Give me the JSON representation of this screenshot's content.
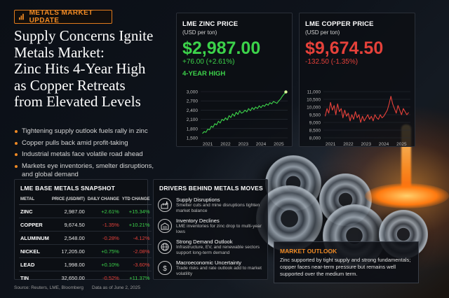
{
  "badge": {
    "label": "METALS MARKET UPDATE",
    "icon": "bar-chart-icon",
    "accent": "#f08a24"
  },
  "headline": [
    "Supply Concerns Ignite",
    "Metals Market:",
    "Zinc Hits 4-Year High",
    "as Copper Retreats",
    "from Elevated Levels"
  ],
  "bullets": [
    "Tightening supply outlook fuels rally in zinc",
    "Copper pulls back amid profit-taking",
    "Industrial metals face volatile road ahead",
    "Markets eye inventories, smelter disruptions, and global demand"
  ],
  "zinc_card": {
    "title": "LME ZINC PRICE",
    "unit": "(USD per ton)",
    "price": "$2,987.00",
    "change": "+76.00 (+2.61%)",
    "subtitle": "4-YEAR HIGH",
    "color": "#3cd24a"
  },
  "copper_card": {
    "title": "LME COPPER PRICE",
    "unit": "(USD per ton)",
    "price": "$9,674.50",
    "change": "-132.50 (-1.35%)",
    "color": "#e5413a"
  },
  "chart_data": [
    {
      "type": "line",
      "yticks": [
        "3,000",
        "2,700",
        "2,400",
        "2,100",
        "1,800",
        "1,500"
      ],
      "xticks": [
        "2021",
        "2022",
        "2023",
        "2024",
        "2025"
      ],
      "ylim": [
        1500,
        3000
      ],
      "xlim": [
        2020.6,
        2025.5
      ],
      "series": [
        {
          "color": "#3cd24a",
          "x": [
            2020.7,
            2020.8,
            2020.9,
            2021.0,
            2021.1,
            2021.2,
            2021.3,
            2021.4,
            2021.5,
            2021.6,
            2021.7,
            2021.8,
            2021.9,
            2022.0,
            2022.1,
            2022.2,
            2022.3,
            2022.4,
            2022.5,
            2022.6,
            2022.7,
            2022.8,
            2022.9,
            2023.0,
            2023.1,
            2023.2,
            2023.3,
            2023.4,
            2023.5,
            2023.6,
            2023.7,
            2023.8,
            2023.9,
            2024.0,
            2024.1,
            2024.2,
            2024.3,
            2024.4,
            2024.5,
            2024.6,
            2024.7,
            2024.8,
            2024.9,
            2025.0,
            2025.1,
            2025.2,
            2025.3,
            2025.4
          ],
          "y": [
            1640,
            1700,
            1680,
            1780,
            1760,
            1880,
            1840,
            1960,
            1920,
            2040,
            1980,
            2100,
            2060,
            2150,
            2080,
            2220,
            2160,
            2280,
            2200,
            2330,
            2260,
            2380,
            2300,
            2330,
            2400,
            2340,
            2450,
            2380,
            2480,
            2420,
            2500,
            2450,
            2540,
            2480,
            2560,
            2520,
            2600,
            2560,
            2640,
            2600,
            2680,
            2650,
            2620,
            2700,
            2760,
            2850,
            2920,
            2990
          ],
          "endpoint": true
        }
      ]
    },
    {
      "type": "line",
      "yticks": [
        "11,000",
        "10,500",
        "10,000",
        "9,500",
        "9,000",
        "8,500",
        "8,000"
      ],
      "xticks": [
        "2021",
        "2022",
        "2023",
        "2024",
        "2025"
      ],
      "ylim": [
        8000,
        11000
      ],
      "xlim": [
        2020.6,
        2025.5
      ],
      "series": [
        {
          "color": "#e5413a",
          "x": [
            2020.7,
            2020.8,
            2020.9,
            2021.0,
            2021.1,
            2021.2,
            2021.3,
            2021.4,
            2021.5,
            2021.6,
            2021.7,
            2021.8,
            2021.9,
            2022.0,
            2022.1,
            2022.2,
            2022.3,
            2022.4,
            2022.5,
            2022.6,
            2022.7,
            2022.8,
            2022.9,
            2023.0,
            2023.1,
            2023.2,
            2023.3,
            2023.4,
            2023.5,
            2023.6,
            2023.7,
            2023.8,
            2023.9,
            2024.0,
            2024.1,
            2024.2,
            2024.3,
            2024.4,
            2024.5,
            2024.6,
            2024.7,
            2024.8,
            2024.9,
            2025.0,
            2025.1,
            2025.2,
            2025.3,
            2025.4
          ],
          "y": [
            9400,
            9900,
            9600,
            10300,
            9800,
            10100,
            9500,
            10200,
            9700,
            9900,
            9300,
            9800,
            9400,
            9600,
            9100,
            9500,
            9200,
            9700,
            9300,
            9500,
            9000,
            9400,
            9100,
            9300,
            9500,
            9200,
            9400,
            9100,
            9500,
            9300,
            9200,
            9500,
            9300,
            9400,
            9600,
            9800,
            10200,
            10700,
            10200,
            9900,
            9600,
            10100,
            9800,
            9500,
            9900,
            9700,
            9500,
            9650
          ]
        }
      ]
    }
  ],
  "snapshot": {
    "title": "LME BASE METALS SNAPSHOT",
    "headers": [
      "METAL",
      "PRICE (USD/MT)",
      "DAILY CHANGE",
      "YTD CHANGE"
    ],
    "rows": [
      {
        "metal": "ZINC",
        "price": "2,987.00",
        "daily": "+2.61%",
        "ytd": "+15.34%",
        "daily_up": true,
        "ytd_up": true
      },
      {
        "metal": "COPPER",
        "price": "9,674.50",
        "daily": "-1.35%",
        "ytd": "+10.21%",
        "daily_up": false,
        "ytd_up": true
      },
      {
        "metal": "ALUMINUM",
        "price": "2,548.00",
        "daily": "-0.28%",
        "ytd": "-4.12%",
        "daily_up": false,
        "ytd_up": false
      },
      {
        "metal": "NICKEL",
        "price": "17,205.00",
        "daily": "+0.75%",
        "ytd": "-2.08%",
        "daily_up": true,
        "ytd_up": false
      },
      {
        "metal": "LEAD",
        "price": "1,998.00",
        "daily": "+0.10%",
        "ytd": "-3.60%",
        "daily_up": true,
        "ytd_up": false
      },
      {
        "metal": "TIN",
        "price": "32,650.00",
        "daily": "-0.52%",
        "ytd": "+11.37%",
        "daily_up": false,
        "ytd_up": true
      }
    ]
  },
  "drivers": {
    "title": "DRIVERS BEHIND METALS MOVES",
    "items": [
      {
        "title": "Supply Disruptions",
        "desc": "Smelter cuts and mine disruptions tighten market balance",
        "icon": "factory-icon"
      },
      {
        "title": "Inventory Declines",
        "desc": "LME inventories for zinc drop to multi-year lows",
        "icon": "warehouse-icon"
      },
      {
        "title": "Strong Demand Outlook",
        "desc": "Infrastructure, EV, and renewable sectors support long-term demand",
        "icon": "globe-icon"
      },
      {
        "title": "Macroeconomic Uncertainty",
        "desc": "Trade risks and rate outlook add to market volatility",
        "icon": "dollar-icon"
      }
    ]
  },
  "outlook": {
    "title": "MARKET OUTLOOK",
    "body": "Zinc supported by tight supply and strong fundamentals; copper faces near-term pressure but remains well supported over the medium term."
  },
  "footer": {
    "source": "Source: Reuters, LME, Bloomberg",
    "date": "Data as of June 2, 2025"
  }
}
